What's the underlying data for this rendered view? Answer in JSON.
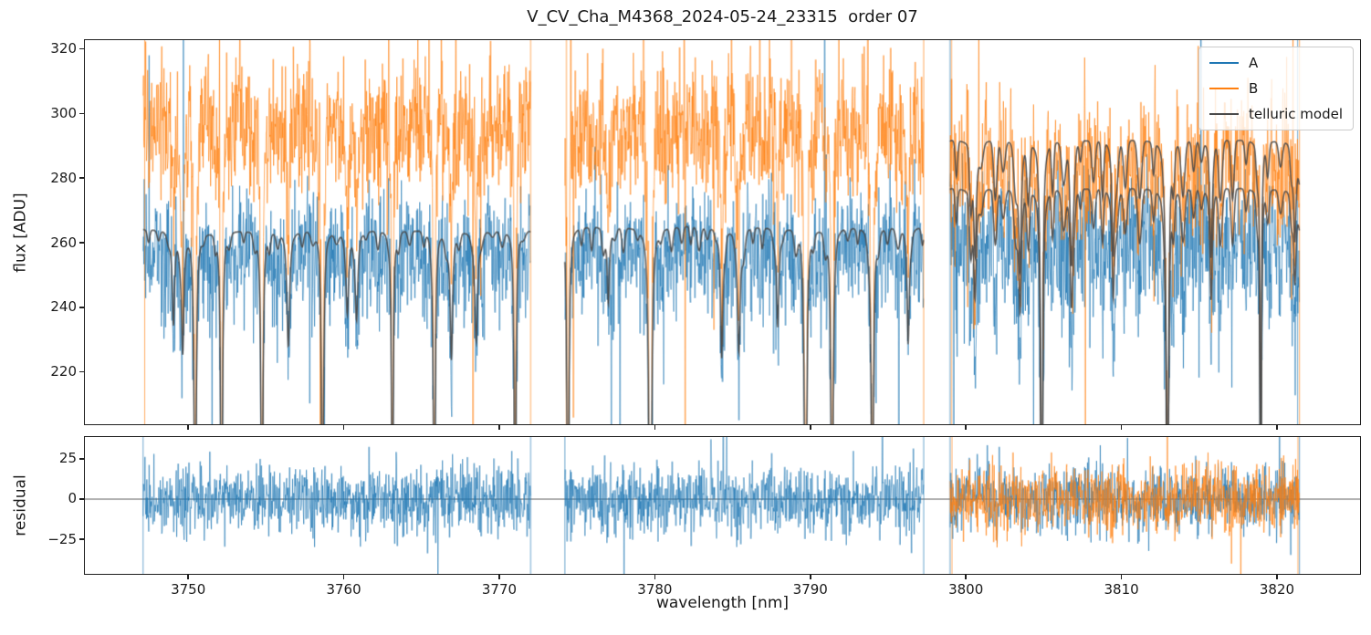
{
  "chart_data": {
    "type": "line",
    "title": "V_CV_Cha_M4368_2024-05-24_23315  order 07",
    "xlabel": "wavelength [nm]",
    "ylabel_flux": "flux [ADU]",
    "ylabel_residual": "residual",
    "xlim": [
      3743.3,
      3825.4
    ],
    "flux_ylim": [
      203.5,
      323
    ],
    "residual_ylim": [
      -47,
      39
    ],
    "xticks": [
      3750,
      3760,
      3770,
      3780,
      3790,
      3800,
      3810,
      3820
    ],
    "flux_yticks": [
      220,
      240,
      260,
      280,
      300,
      320
    ],
    "residual_yticks": [
      -25,
      0,
      25
    ],
    "residual_ytick_labels": [
      "−25",
      "0",
      "25"
    ],
    "grid": false,
    "legend": {
      "position": "upper right",
      "entries": [
        {
          "label": "A",
          "color": "#1f77b4"
        },
        {
          "label": "B",
          "color": "#ff7f0e"
        },
        {
          "label": "telluric model",
          "color": "#4a4a4a"
        }
      ]
    },
    "zero_line": {
      "y": 0,
      "color": "#555555"
    },
    "segments": [
      {
        "x_start": 3747.05,
        "x_end": 3772.0,
        "A_level": 259,
        "B_level": 299,
        "noise_sigma": 10,
        "model_levels": [
          264
        ],
        "scallop_depth": 0.018,
        "residual_series": [
          "A"
        ]
      },
      {
        "x_start": 3774.2,
        "x_end": 3797.3,
        "A_level": 259,
        "B_level": 299,
        "noise_sigma": 10,
        "model_levels": [
          265
        ],
        "scallop_depth": 0.024,
        "residual_series": [
          "A"
        ]
      },
      {
        "x_start": 3799.0,
        "x_end": 3821.5,
        "A_level": 262,
        "B_level": 287,
        "noise_sigma": 11,
        "model_levels": [
          277,
          292
        ],
        "scallop_depth": 0.055,
        "residual_series": [
          "A",
          "B"
        ]
      }
    ],
    "telluric_lines": {
      "deep": [
        3750.4,
        3752.1,
        3754.7,
        3758.6,
        3763.1,
        3765.8,
        3771.0,
        3774.4,
        3779.7,
        3789.7,
        3791.4,
        3794.0,
        3804.9,
        3813.0,
        3819.0
      ],
      "medium": [
        3749.0,
        3749.6,
        3756.4,
        3760.2,
        3760.8,
        3766.9,
        3768.5,
        3777.0,
        3784.3,
        3785.4,
        3787.9,
        3796.3,
        3800.6,
        3803.5,
        3806.8,
        3809.5,
        3815.8,
        3821.2
      ]
    },
    "residual_sigma": 11,
    "sample_step_nm": 0.024
  }
}
